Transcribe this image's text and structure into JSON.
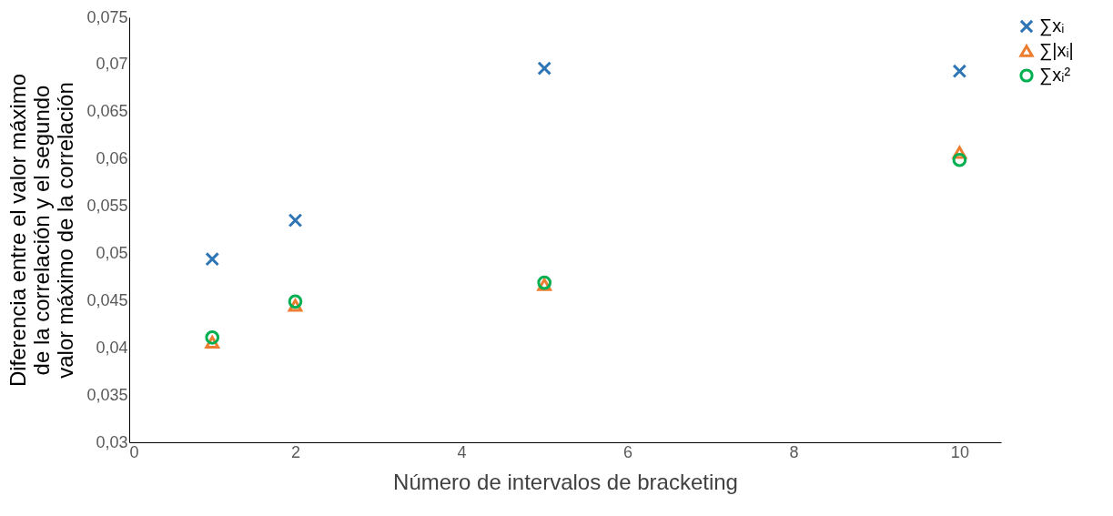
{
  "chart_data": {
    "type": "scatter",
    "xlabel": "Número de intervalos de bracketing",
    "ylabel": "Diferencia entre el valor máximo\nde la correlación y el segundo\nvalor máximo de la correlación",
    "x": [
      1,
      2,
      5,
      10
    ],
    "series": [
      {
        "name": "∑xᵢ",
        "color": "#2e75b6",
        "marker": "cross",
        "values": [
          0.0494,
          0.0535,
          0.0696,
          0.0693
        ]
      },
      {
        "name": "∑|xᵢ|",
        "color": "#ed7d31",
        "marker": "triangle",
        "values": [
          0.0406,
          0.0445,
          0.0467,
          0.0607
        ]
      },
      {
        "name": "∑xᵢ²",
        "color": "#00b050",
        "marker": "circle",
        "values": [
          0.0411,
          0.0449,
          0.0469,
          0.0599
        ]
      }
    ],
    "xlim": [
      0,
      10.5
    ],
    "xticks": [
      0,
      2,
      4,
      6,
      8,
      10
    ],
    "ylim": [
      0.03,
      0.075
    ],
    "yticks": [
      {
        "value": 0.03,
        "label": "0,03"
      },
      {
        "value": 0.035,
        "label": "0,035"
      },
      {
        "value": 0.04,
        "label": "0,04"
      },
      {
        "value": 0.045,
        "label": "0,045"
      },
      {
        "value": 0.05,
        "label": "0,05"
      },
      {
        "value": 0.055,
        "label": "0,055"
      },
      {
        "value": 0.06,
        "label": "0,06"
      },
      {
        "value": 0.065,
        "label": "0,065"
      },
      {
        "value": 0.07,
        "label": "0,07"
      },
      {
        "value": 0.075,
        "label": "0,075"
      }
    ],
    "grid": false,
    "legend": "right"
  }
}
